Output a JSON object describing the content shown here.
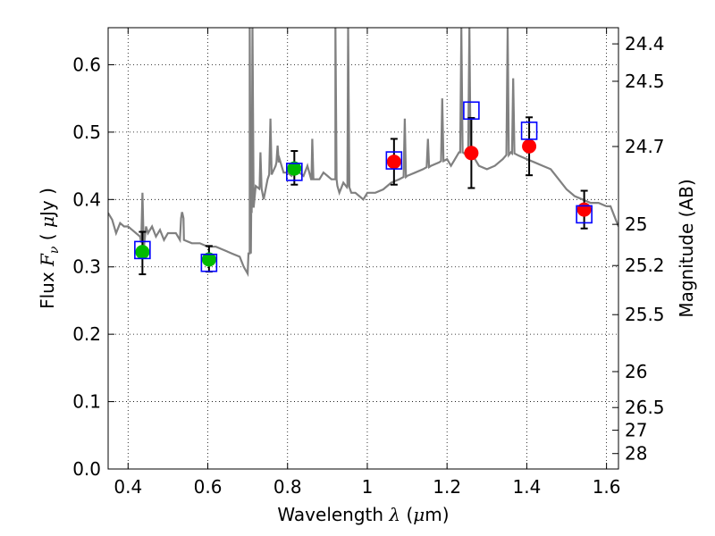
{
  "chart_data": {
    "type": "scatter",
    "xlabel": {
      "prefix": "Wavelength  ",
      "symbol": "λ",
      "unit_open": " (",
      "unit_symbol": "μ",
      "unit_rest": "m)"
    },
    "ylabel": {
      "prefix": "Flux  ",
      "symbol": "F",
      "subscript": "ν",
      "unit_open": "  ( ",
      "unit_symbol": "μ",
      "unit_rest": "Jy )"
    },
    "y2label": "Magnitude (AB)",
    "xlim": [
      0.35,
      1.63
    ],
    "ylim": [
      0.0,
      0.655
    ],
    "x_ticks": [
      0.4,
      0.6,
      0.8,
      1.0,
      1.2,
      1.4,
      1.6
    ],
    "x_tick_labels": [
      "0.4",
      "0.6",
      "0.8",
      "1",
      "1.2",
      "1.4",
      "1.6"
    ],
    "y_ticks": [
      0.0,
      0.1,
      0.2,
      0.3,
      0.4,
      0.5,
      0.6
    ],
    "y_tick_labels": [
      "0.0",
      "0.1",
      "0.2",
      "0.3",
      "0.4",
      "0.5",
      "0.6"
    ],
    "y2_ticks": [
      24.4,
      24.5,
      24.7,
      25,
      25.2,
      25.5,
      26,
      26.5,
      27,
      28
    ],
    "y2_tick_labels": [
      "24.4",
      "24.5",
      "24.7",
      "25",
      "25.2",
      "25.5",
      "26",
      "26.5",
      "27",
      "28"
    ],
    "grid": true,
    "colors": {
      "model_spectrum": "#808080",
      "green_points": "#00bb00",
      "red_points": "#ff0000",
      "model_boxes": "#0000ff",
      "errorbars": "#000000"
    },
    "model_spectrum": [
      [
        0.35,
        0.38
      ],
      [
        0.36,
        0.37
      ],
      [
        0.37,
        0.35
      ],
      [
        0.38,
        0.365
      ],
      [
        0.39,
        0.36
      ],
      [
        0.4,
        0.36
      ],
      [
        0.41,
        0.355
      ],
      [
        0.42,
        0.35
      ],
      [
        0.43,
        0.345
      ],
      [
        0.44,
        0.33
      ],
      [
        0.445,
        0.36
      ],
      [
        0.45,
        0.35
      ],
      [
        0.46,
        0.36
      ],
      [
        0.47,
        0.345
      ],
      [
        0.48,
        0.355
      ],
      [
        0.49,
        0.34
      ],
      [
        0.5,
        0.35
      ],
      [
        0.52,
        0.35
      ],
      [
        0.53,
        0.34
      ],
      [
        0.535,
        0.38
      ],
      [
        0.54,
        0.34
      ],
      [
        0.56,
        0.335
      ],
      [
        0.58,
        0.335
      ],
      [
        0.6,
        0.33
      ],
      [
        0.62,
        0.33
      ],
      [
        0.64,
        0.325
      ],
      [
        0.66,
        0.32
      ],
      [
        0.68,
        0.315
      ],
      [
        0.69,
        0.3
      ],
      [
        0.7,
        0.29
      ],
      [
        0.705,
        0.32
      ],
      [
        0.71,
        0.38
      ],
      [
        0.72,
        0.42
      ],
      [
        0.73,
        0.42
      ],
      [
        0.74,
        0.4
      ],
      [
        0.75,
        0.43
      ],
      [
        0.76,
        0.44
      ],
      [
        0.77,
        0.45
      ],
      [
        0.78,
        0.46
      ],
      [
        0.79,
        0.44
      ],
      [
        0.8,
        0.44
      ],
      [
        0.81,
        0.435
      ],
      [
        0.82,
        0.445
      ],
      [
        0.83,
        0.44
      ],
      [
        0.84,
        0.435
      ],
      [
        0.85,
        0.45
      ],
      [
        0.86,
        0.43
      ],
      [
        0.87,
        0.43
      ],
      [
        0.88,
        0.43
      ],
      [
        0.89,
        0.44
      ],
      [
        0.9,
        0.435
      ],
      [
        0.91,
        0.43
      ],
      [
        0.92,
        0.43
      ],
      [
        0.925,
        0.42
      ],
      [
        0.93,
        0.41
      ],
      [
        0.94,
        0.425
      ],
      [
        0.95,
        0.42
      ],
      [
        0.96,
        0.41
      ],
      [
        0.97,
        0.41
      ],
      [
        0.98,
        0.405
      ],
      [
        0.99,
        0.4
      ],
      [
        1.0,
        0.41
      ],
      [
        1.02,
        0.41
      ],
      [
        1.04,
        0.415
      ],
      [
        1.06,
        0.425
      ],
      [
        1.08,
        0.43
      ],
      [
        1.1,
        0.435
      ],
      [
        1.12,
        0.44
      ],
      [
        1.14,
        0.445
      ],
      [
        1.16,
        0.45
      ],
      [
        1.18,
        0.455
      ],
      [
        1.2,
        0.46
      ],
      [
        1.21,
        0.45
      ],
      [
        1.22,
        0.46
      ],
      [
        1.23,
        0.47
      ],
      [
        1.24,
        0.47
      ],
      [
        1.25,
        0.465
      ],
      [
        1.26,
        0.47
      ],
      [
        1.27,
        0.46
      ],
      [
        1.28,
        0.45
      ],
      [
        1.3,
        0.445
      ],
      [
        1.32,
        0.45
      ],
      [
        1.34,
        0.46
      ],
      [
        1.36,
        0.47
      ],
      [
        1.38,
        0.465
      ],
      [
        1.4,
        0.46
      ],
      [
        1.42,
        0.455
      ],
      [
        1.44,
        0.45
      ],
      [
        1.46,
        0.445
      ],
      [
        1.48,
        0.43
      ],
      [
        1.5,
        0.415
      ],
      [
        1.52,
        0.405
      ],
      [
        1.54,
        0.4
      ],
      [
        1.56,
        0.395
      ],
      [
        1.58,
        0.395
      ],
      [
        1.6,
        0.39
      ],
      [
        1.61,
        0.39
      ],
      [
        1.62,
        0.375
      ],
      [
        1.63,
        0.36
      ]
    ],
    "emission_lines": [
      {
        "x": 0.436,
        "peak": 0.41
      },
      {
        "x": 0.536,
        "peak": 0.38
      },
      {
        "x": 0.705,
        "peak": 0.655
      },
      {
        "x": 0.712,
        "peak": 0.655
      },
      {
        "x": 0.732,
        "peak": 0.47
      },
      {
        "x": 0.757,
        "peak": 0.52
      },
      {
        "x": 0.775,
        "peak": 0.48
      },
      {
        "x": 0.862,
        "peak": 0.49
      },
      {
        "x": 0.92,
        "peak": 0.655
      },
      {
        "x": 0.952,
        "peak": 0.655
      },
      {
        "x": 1.094,
        "peak": 0.52
      },
      {
        "x": 1.152,
        "peak": 0.49
      },
      {
        "x": 1.188,
        "peak": 0.55
      },
      {
        "x": 1.236,
        "peak": 0.655
      },
      {
        "x": 1.256,
        "peak": 0.655
      },
      {
        "x": 1.352,
        "peak": 0.655
      },
      {
        "x": 1.366,
        "peak": 0.58
      }
    ],
    "green_points": [
      {
        "x": 0.436,
        "y": 0.322,
        "yerr_low": 0.033,
        "yerr_high": 0.03
      },
      {
        "x": 0.603,
        "y": 0.311,
        "yerr_low": 0.018,
        "yerr_high": 0.02
      },
      {
        "x": 0.817,
        "y": 0.446,
        "yerr_low": 0.024,
        "yerr_high": 0.026
      }
    ],
    "red_points": [
      {
        "x": 1.067,
        "y": 0.456,
        "yerr_low": 0.034,
        "yerr_high": 0.034
      },
      {
        "x": 1.261,
        "y": 0.469,
        "yerr_low": 0.052,
        "yerr_high": 0.052
      },
      {
        "x": 1.406,
        "y": 0.479,
        "yerr_low": 0.043,
        "yerr_high": 0.043
      },
      {
        "x": 1.544,
        "y": 0.385,
        "yerr_low": 0.028,
        "yerr_high": 0.028
      }
    ],
    "model_boxes": [
      {
        "x": 0.436,
        "y": 0.325
      },
      {
        "x": 0.603,
        "y": 0.306
      },
      {
        "x": 0.817,
        "y": 0.441
      },
      {
        "x": 1.067,
        "y": 0.458
      },
      {
        "x": 1.261,
        "y": 0.532
      },
      {
        "x": 1.406,
        "y": 0.502
      },
      {
        "x": 1.544,
        "y": 0.378
      }
    ]
  }
}
